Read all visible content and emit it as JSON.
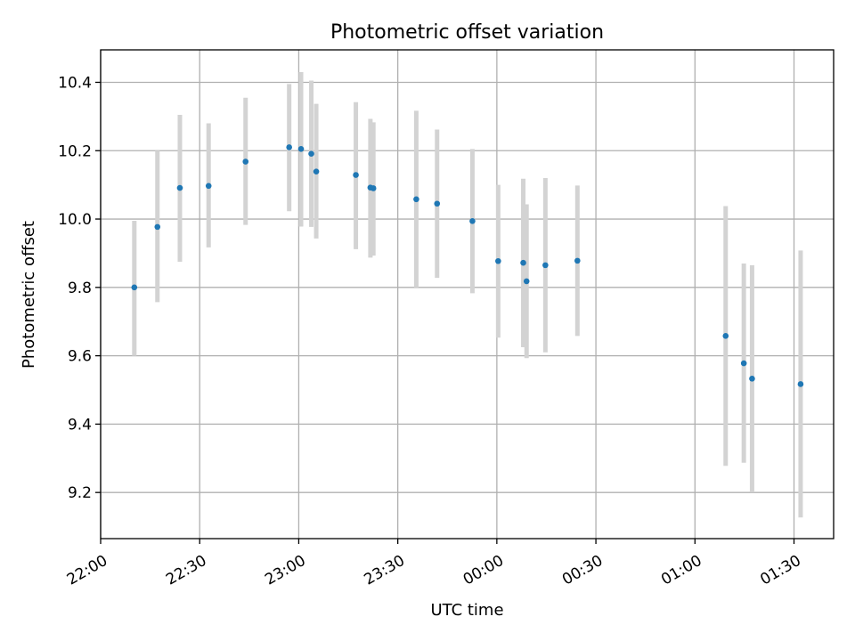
{
  "chart_data": {
    "type": "scatter",
    "title": "Photometric offset variation",
    "xlabel": "UTC time",
    "ylabel": "Photometric offset",
    "x_unit": "minutes after 22:00 UTC",
    "xlim": [
      0,
      222
    ],
    "ylim": [
      9.065,
      10.495
    ],
    "grid": true,
    "x_ticks": [
      {
        "value": 0,
        "label": "22:00"
      },
      {
        "value": 30,
        "label": "22:30"
      },
      {
        "value": 60,
        "label": "23:00"
      },
      {
        "value": 90,
        "label": "23:30"
      },
      {
        "value": 120,
        "label": "00:00"
      },
      {
        "value": 150,
        "label": "00:30"
      },
      {
        "value": 180,
        "label": "01:00"
      },
      {
        "value": 210,
        "label": "01:30"
      }
    ],
    "y_ticks": [
      {
        "value": 9.2,
        "label": "9.2"
      },
      {
        "value": 9.4,
        "label": "9.4"
      },
      {
        "value": 9.6,
        "label": "9.6"
      },
      {
        "value": 9.8,
        "label": "9.8"
      },
      {
        "value": 10.0,
        "label": "10.0"
      },
      {
        "value": 10.2,
        "label": "10.2"
      },
      {
        "value": 10.4,
        "label": "10.4"
      }
    ],
    "marker_color": "#1f77b4",
    "errorbar_color": "#d3d3d3",
    "points": [
      {
        "x": 10.2,
        "y": 9.8,
        "err_low": 9.6,
        "err_high": 9.995
      },
      {
        "x": 17.2,
        "y": 9.977,
        "err_low": 9.757,
        "err_high": 10.2
      },
      {
        "x": 24.0,
        "y": 10.091,
        "err_low": 9.875,
        "err_high": 10.305
      },
      {
        "x": 32.7,
        "y": 10.097,
        "err_low": 9.917,
        "err_high": 10.28
      },
      {
        "x": 43.9,
        "y": 10.168,
        "err_low": 9.983,
        "err_high": 10.355
      },
      {
        "x": 57.1,
        "y": 10.21,
        "err_low": 10.023,
        "err_high": 10.395
      },
      {
        "x": 60.7,
        "y": 10.205,
        "err_low": 9.978,
        "err_high": 10.43
      },
      {
        "x": 63.8,
        "y": 10.191,
        "err_low": 9.977,
        "err_high": 10.405
      },
      {
        "x": 65.3,
        "y": 10.139,
        "err_low": 9.943,
        "err_high": 10.337
      },
      {
        "x": 77.3,
        "y": 10.129,
        "err_low": 9.912,
        "err_high": 10.342
      },
      {
        "x": 81.7,
        "y": 10.092,
        "err_low": 9.887,
        "err_high": 10.293
      },
      {
        "x": 82.6,
        "y": 10.09,
        "err_low": 9.893,
        "err_high": 10.283
      },
      {
        "x": 95.6,
        "y": 10.058,
        "err_low": 9.8,
        "err_high": 10.317
      },
      {
        "x": 101.9,
        "y": 10.045,
        "err_low": 9.828,
        "err_high": 10.262
      },
      {
        "x": 112.6,
        "y": 9.994,
        "err_low": 9.783,
        "err_high": 10.205
      },
      {
        "x": 120.4,
        "y": 9.877,
        "err_low": 9.653,
        "err_high": 10.1
      },
      {
        "x": 128.0,
        "y": 9.872,
        "err_low": 9.625,
        "err_high": 10.118
      },
      {
        "x": 129.0,
        "y": 9.818,
        "err_low": 9.593,
        "err_high": 10.043
      },
      {
        "x": 134.7,
        "y": 9.865,
        "err_low": 9.61,
        "err_high": 10.12
      },
      {
        "x": 144.4,
        "y": 9.878,
        "err_low": 9.658,
        "err_high": 10.098
      },
      {
        "x": 189.3,
        "y": 9.658,
        "err_low": 9.278,
        "err_high": 10.038
      },
      {
        "x": 194.8,
        "y": 9.578,
        "err_low": 9.287,
        "err_high": 9.87
      },
      {
        "x": 197.3,
        "y": 9.533,
        "err_low": 9.2,
        "err_high": 9.865
      },
      {
        "x": 212.0,
        "y": 9.517,
        "err_low": 9.127,
        "err_high": 9.908
      }
    ]
  }
}
